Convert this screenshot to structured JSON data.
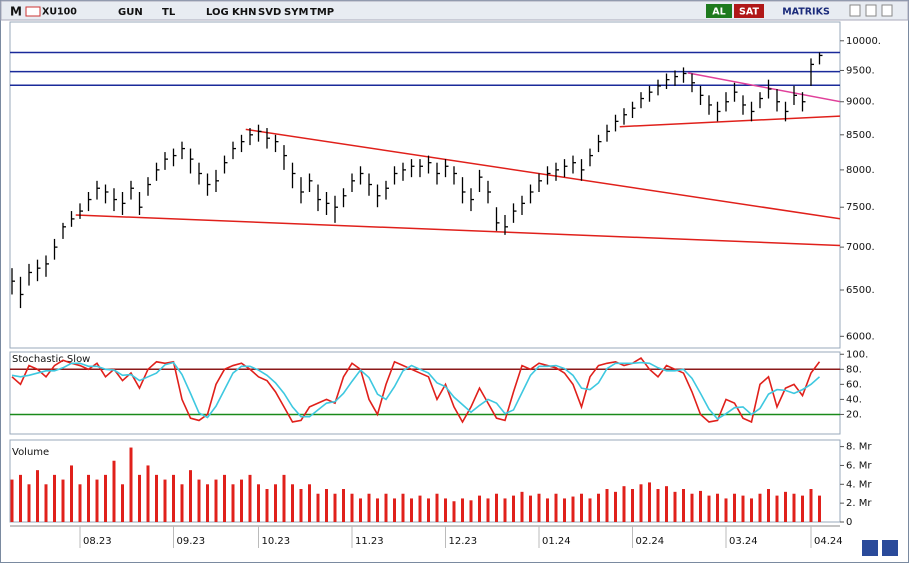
{
  "toolbar": {
    "logo": "M",
    "symbol": "XU100",
    "buttons": [
      "GUN",
      "TL",
      "LOG",
      "KHN",
      "SVD",
      "SYM",
      "TMP"
    ],
    "buy": "AL",
    "sell": "SAT",
    "brand": "MATRIKS"
  },
  "chart_data": [
    {
      "type": "hlc",
      "log_scale": true,
      "color": "#000000",
      "ylim": [
        5880,
        10330
      ],
      "yticks": [
        {
          "value": 10000,
          "label": "10000."
        },
        {
          "value": 9500,
          "label": "9500."
        },
        {
          "value": 9000,
          "label": "9000."
        },
        {
          "value": 8500,
          "label": "8500."
        },
        {
          "value": 8000,
          "label": "8000."
        },
        {
          "value": 7500,
          "label": "7500."
        },
        {
          "value": 7000,
          "label": "7000."
        },
        {
          "value": 6500,
          "label": "6500."
        },
        {
          "value": 6000,
          "label": "6000."
        }
      ],
      "close": [
        6600,
        6450,
        6700,
        6750,
        6800,
        7000,
        7250,
        7350,
        7450,
        7600,
        7750,
        7700,
        7600,
        7550,
        7750,
        7500,
        7800,
        8000,
        8150,
        8200,
        8300,
        8150,
        7950,
        7800,
        7850,
        8100,
        8300,
        8400,
        8500,
        8550,
        8450,
        8400,
        8200,
        7950,
        7700,
        7850,
        7600,
        7550,
        7500,
        7650,
        7850,
        7950,
        7800,
        7650,
        7750,
        7950,
        8000,
        8050,
        8050,
        8100,
        7950,
        8050,
        7950,
        7700,
        7600,
        7900,
        7700,
        7300,
        7250,
        7450,
        7550,
        7700,
        7850,
        7950,
        8000,
        8050,
        8100,
        8000,
        8200,
        8400,
        8550,
        8700,
        8800,
        8900,
        9050,
        9150,
        9250,
        9350,
        9400,
        9450,
        9300,
        9100,
        8950,
        8850,
        9000,
        9150,
        8950,
        8850,
        9050,
        9200,
        9000,
        8850,
        9100,
        9000,
        9600,
        9750
      ],
      "high": [
        6750,
        6650,
        6800,
        6850,
        6900,
        7100,
        7300,
        7450,
        7550,
        7700,
        7850,
        7800,
        7750,
        7700,
        7850,
        7700,
        7900,
        8100,
        8250,
        8300,
        8400,
        8300,
        8100,
        7950,
        8000,
        8200,
        8400,
        8500,
        8600,
        8650,
        8600,
        8500,
        8350,
        8100,
        7900,
        7950,
        7800,
        7700,
        7650,
        7750,
        7950,
        8050,
        7950,
        7800,
        7850,
        8050,
        8100,
        8150,
        8150,
        8200,
        8100,
        8150,
        8050,
        7900,
        7750,
        8000,
        7850,
        7500,
        7400,
        7550,
        7650,
        7800,
        7950,
        8050,
        8100,
        8150,
        8200,
        8150,
        8300,
        8500,
        8650,
        8800,
        8900,
        9000,
        9150,
        9250,
        9350,
        9450,
        9500,
        9550,
        9450,
        9250,
        9100,
        9000,
        9150,
        9300,
        9100,
        9000,
        9150,
        9350,
        9200,
        9000,
        9250,
        9150,
        9700,
        9800
      ],
      "low": [
        6450,
        6300,
        6550,
        6600,
        6650,
        6850,
        7100,
        7250,
        7350,
        7450,
        7600,
        7550,
        7450,
        7400,
        7600,
        7400,
        7650,
        7850,
        8000,
        8050,
        8150,
        7950,
        7800,
        7650,
        7700,
        7950,
        8150,
        8250,
        8350,
        8400,
        8300,
        8250,
        8000,
        7750,
        7550,
        7700,
        7450,
        7400,
        7300,
        7500,
        7700,
        7800,
        7650,
        7500,
        7600,
        7800,
        7850,
        7900,
        7900,
        7950,
        7800,
        7900,
        7800,
        7550,
        7450,
        7700,
        7550,
        7200,
        7150,
        7300,
        7400,
        7550,
        7700,
        7800,
        7850,
        7900,
        7950,
        7850,
        8050,
        8250,
        8400,
        8550,
        8650,
        8750,
        8900,
        9000,
        9100,
        9200,
        9250,
        9300,
        9150,
        8950,
        8800,
        8700,
        8850,
        9000,
        8800,
        8700,
        8900,
        9050,
        8850,
        8700,
        8950,
        8850,
        9250,
        9600
      ],
      "hlines": {
        "color": "#1a2a9a",
        "values": [
          9800,
          9480,
          9260
        ]
      },
      "trendlines": [
        {
          "color": "#e0201b",
          "from": [
            7.5,
            7400
          ],
          "to": [
            97.5,
            7020
          ]
        },
        {
          "color": "#e0201b",
          "from": [
            27.5,
            8580
          ],
          "to": [
            97.5,
            7350
          ]
        },
        {
          "color": "#e0201b",
          "from": [
            71.5,
            8620
          ],
          "to": [
            97.5,
            8780
          ]
        },
        {
          "color": "#e0409a",
          "from": [
            79.5,
            9460
          ],
          "to": [
            97.5,
            9000
          ]
        }
      ]
    },
    {
      "type": "line",
      "title": "Stochastic Slow",
      "ylim": [
        -6,
        103
      ],
      "yticks": [
        {
          "value": 100,
          "label": "100."
        },
        {
          "value": 80,
          "label": "80."
        },
        {
          "value": 60,
          "label": "60."
        },
        {
          "value": 40,
          "label": "40."
        },
        {
          "value": 20,
          "label": "20."
        }
      ],
      "levels": [
        {
          "value": 80,
          "color": "#8b1a1a"
        },
        {
          "value": 20,
          "color": "#1a8a1a"
        }
      ],
      "series": [
        {
          "color": "#e0201b",
          "values": [
            70,
            60,
            85,
            80,
            70,
            85,
            92,
            88,
            85,
            80,
            88,
            70,
            80,
            65,
            75,
            55,
            80,
            90,
            88,
            90,
            40,
            15,
            12,
            20,
            60,
            80,
            85,
            88,
            80,
            70,
            65,
            50,
            30,
            10,
            12,
            30,
            35,
            40,
            35,
            70,
            88,
            80,
            40,
            20,
            60,
            90,
            85,
            80,
            75,
            70,
            40,
            60,
            30,
            10,
            30,
            55,
            35,
            15,
            12,
            50,
            85,
            80,
            88,
            85,
            82,
            75,
            60,
            30,
            70,
            85,
            88,
            90,
            85,
            88,
            95,
            80,
            70,
            85,
            80,
            75,
            50,
            20,
            10,
            12,
            40,
            35,
            15,
            10,
            60,
            70,
            30,
            55,
            60,
            45,
            75,
            90
          ]
        },
        {
          "color": "#3ec8e0",
          "values": [
            72,
            70,
            72,
            75,
            78,
            78,
            82,
            88,
            88,
            84,
            84,
            80,
            79,
            72,
            73,
            65,
            70,
            75,
            86,
            89,
            73,
            48,
            22,
            16,
            31,
            53,
            75,
            84,
            84,
            79,
            72,
            62,
            48,
            30,
            17,
            17,
            26,
            35,
            37,
            48,
            64,
            79,
            69,
            47,
            40,
            57,
            78,
            85,
            80,
            75,
            62,
            57,
            43,
            33,
            23,
            32,
            40,
            35,
            21,
            26,
            49,
            72,
            84,
            84,
            85,
            81,
            72,
            55,
            53,
            62,
            81,
            88,
            88,
            88,
            89,
            88,
            82,
            78,
            78,
            80,
            68,
            48,
            27,
            14,
            21,
            29,
            30,
            20,
            28,
            47,
            53,
            52,
            48,
            53,
            60,
            70
          ]
        }
      ]
    },
    {
      "type": "bar",
      "title": "Volume",
      "color": "#e0201b",
      "ylim": [
        0,
        8.7
      ],
      "yticks": [
        {
          "value": 8,
          "label": "8. Mr"
        },
        {
          "value": 6,
          "label": "6. Mr"
        },
        {
          "value": 4,
          "label": "4. Mr"
        },
        {
          "value": 2,
          "label": "2. Mr"
        },
        0
      ],
      "categories": [
        null,
        null,
        null,
        null,
        null,
        null,
        null,
        null,
        "08.23",
        null,
        null,
        null,
        null,
        null,
        null,
        null,
        null,
        null,
        null,
        "09.23",
        null,
        null,
        null,
        null,
        null,
        null,
        null,
        null,
        null,
        "10.23",
        null,
        null,
        null,
        null,
        null,
        null,
        null,
        null,
        null,
        null,
        "11.23",
        null,
        null,
        null,
        null,
        null,
        null,
        null,
        null,
        null,
        null,
        "12.23",
        null,
        null,
        null,
        null,
        null,
        null,
        null,
        null,
        null,
        null,
        "01.24",
        null,
        null,
        null,
        null,
        null,
        null,
        null,
        null,
        null,
        null,
        "02.24",
        null,
        null,
        null,
        null,
        null,
        null,
        null,
        null,
        null,
        null,
        "03.24",
        null,
        null,
        null,
        null,
        null,
        null,
        null,
        null,
        null,
        "04.24",
        null
      ],
      "values": [
        4.5,
        5,
        4,
        5.5,
        4,
        5,
        4.5,
        6,
        4,
        5,
        4.5,
        5,
        6.5,
        4,
        7.9,
        5,
        6,
        5,
        4.5,
        5,
        4,
        5.5,
        4.5,
        4,
        4.5,
        5,
        4,
        4.5,
        5,
        4,
        3.5,
        4,
        5,
        4,
        3.5,
        4,
        3,
        3.5,
        3,
        3.5,
        3,
        2.5,
        3,
        2.5,
        3,
        2.5,
        3,
        2.5,
        2.8,
        2.5,
        3,
        2.5,
        2.2,
        2.5,
        2.3,
        2.8,
        2.5,
        3,
        2.5,
        2.8,
        3.2,
        2.8,
        3,
        2.5,
        3,
        2.5,
        2.7,
        3,
        2.5,
        3,
        3.5,
        3.2,
        3.8,
        3.5,
        4,
        4.2,
        3.5,
        3.8,
        3.2,
        3.5,
        3,
        3.3,
        2.8,
        3,
        2.5,
        3,
        2.8,
        2.5,
        3,
        3.5,
        2.8,
        3.2,
        3,
        2.8,
        3.5,
        2.8
      ]
    }
  ]
}
